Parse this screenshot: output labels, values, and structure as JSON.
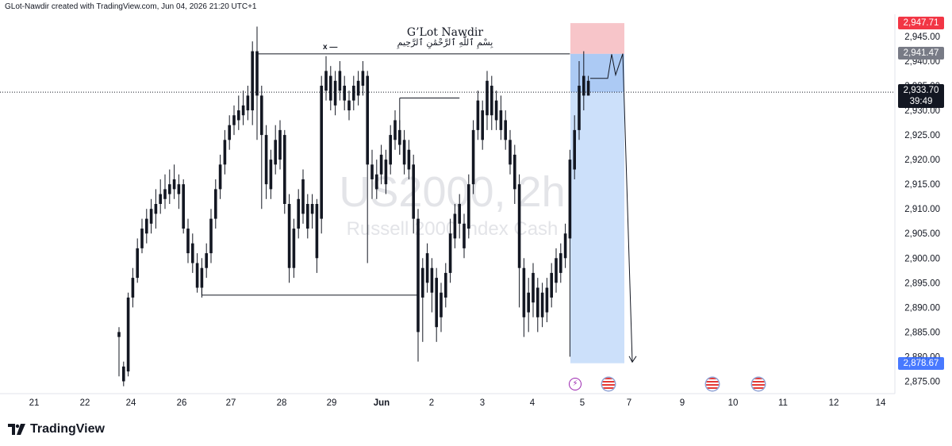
{
  "header": {
    "credit": "GLot-Nawdir created with TradingView.com, Jun 04, 2026 21:20 UTC+1"
  },
  "watermark": {
    "symbol": "US2000, 2h",
    "name": "Russell 2000 Index Cash"
  },
  "annotations": {
    "author": "G’Lot Nawdir",
    "basmala": "بِسْمِ ٱللَّٰهِ ٱلرَّحْمَٰنِ ٱلرَّحِيمِ",
    "marker": "x —"
  },
  "price_labels": {
    "stop": "2,947.71",
    "entry": "2,941.47",
    "current": "2,933.70",
    "countdown": "39:49",
    "target": "2,878.67"
  },
  "footer": {
    "brand": "TradingView"
  },
  "colors": {
    "up": "#2962ff",
    "down": "#131722",
    "stop_zone": "#f7c5c9",
    "target_zone": "#bbd5f8",
    "stop_label": "#f23645",
    "target_label": "#2962ff"
  },
  "icons": [
    "lightning-event-icon",
    "us-flag-icon",
    "us-flag-icon",
    "us-flag-icon"
  ],
  "chart_data": {
    "type": "candlestick",
    "symbol": "US2000",
    "timeframe": "2h",
    "y_ticks": [
      2945,
      2940,
      2935,
      2930,
      2925,
      2920,
      2915,
      2910,
      2905,
      2900,
      2895,
      2890,
      2885,
      2880,
      2875
    ],
    "y_tick_labels": [
      "2,945.00",
      "2,940.00",
      "2,935.00",
      "2,930.00",
      "2,925.00",
      "2,920.00",
      "2,915.00",
      "2,910.00",
      "2,905.00",
      "2,900.00",
      "2,895.00",
      "2,890.00",
      "2,885.00",
      "2,880.00",
      "2,875.00"
    ],
    "ylim": [
      2872.5,
      2949.5
    ],
    "x_tick_labels": [
      "21",
      "22",
      "24",
      "26",
      "27",
      "28",
      "29",
      "Jun",
      "2",
      "3",
      "4",
      "5",
      "7",
      "9",
      "10",
      "11",
      "12",
      "14"
    ],
    "candles": [
      [
        2885,
        2884,
        2886,
        2876
      ],
      [
        2878,
        2875,
        2879,
        2874
      ],
      [
        2892,
        2877,
        2893,
        2876
      ],
      [
        2896,
        2892,
        2898,
        2890
      ],
      [
        2902,
        2896,
        2904,
        2895
      ],
      [
        2906,
        2902,
        2908,
        2901
      ],
      [
        2908,
        2905,
        2910,
        2903
      ],
      [
        2910,
        2907,
        2912,
        2905
      ],
      [
        2911,
        2909,
        2914,
        2906
      ],
      [
        2913,
        2911,
        2916,
        2909
      ],
      [
        2914,
        2912,
        2917,
        2910
      ],
      [
        2915,
        2913,
        2918,
        2911
      ],
      [
        2916,
        2914,
        2919,
        2912
      ],
      [
        2915,
        2913,
        2917,
        2910
      ],
      [
        2915,
        2906,
        2916,
        2905
      ],
      [
        2906,
        2901,
        2908,
        2899
      ],
      [
        2903,
        2899,
        2905,
        2897
      ],
      [
        2899,
        2894,
        2901,
        2893
      ],
      [
        2898,
        2894,
        2900,
        2892
      ],
      [
        2901,
        2898,
        2903,
        2896
      ],
      [
        2908,
        2901,
        2910,
        2899
      ],
      [
        2914,
        2908,
        2916,
        2906
      ],
      [
        2919,
        2914,
        2921,
        2912
      ],
      [
        2924,
        2919,
        2926,
        2917
      ],
      [
        2927,
        2924,
        2929,
        2922
      ],
      [
        2929,
        2927,
        2931,
        2925
      ],
      [
        2930,
        2928,
        2933,
        2926
      ],
      [
        2931,
        2929,
        2934,
        2927
      ],
      [
        2933,
        2930,
        2935,
        2928
      ],
      [
        2942,
        2930,
        2944,
        2927
      ],
      [
        2942,
        2933,
        2947,
        2924
      ],
      [
        2933,
        2925,
        2935,
        2910
      ],
      [
        2925,
        2915,
        2927,
        2912
      ],
      [
        2920,
        2914,
        2922,
        2912
      ],
      [
        2924,
        2919,
        2927,
        2917
      ],
      [
        2926,
        2920,
        2928,
        2918
      ],
      [
        2925,
        2911,
        2926,
        2909
      ],
      [
        2911,
        2898,
        2913,
        2895
      ],
      [
        2906,
        2898,
        2908,
        2896
      ],
      [
        2912,
        2906,
        2914,
        2904
      ],
      [
        2916,
        2909,
        2918,
        2907
      ],
      [
        2911,
        2906,
        2913,
        2904
      ],
      [
        2911,
        2909,
        2913,
        2906
      ],
      [
        2911,
        2900,
        2912,
        2897
      ],
      [
        2935,
        2908,
        2937,
        2905
      ],
      [
        2938,
        2934,
        2941,
        2932
      ],
      [
        2937,
        2932,
        2939,
        2930
      ],
      [
        2936,
        2931,
        2938,
        2929
      ],
      [
        2938,
        2934,
        2940,
        2932
      ],
      [
        2935,
        2932,
        2937,
        2930
      ],
      [
        2932,
        2930,
        2934,
        2928
      ],
      [
        2935,
        2932,
        2937,
        2930
      ],
      [
        2936,
        2933,
        2938,
        2931
      ],
      [
        2938,
        2935,
        2940,
        2933
      ],
      [
        2937,
        2919,
        2938,
        2899
      ],
      [
        2919,
        2916,
        2922,
        2912
      ],
      [
        2917,
        2914,
        2920,
        2912
      ],
      [
        2921,
        2917,
        2923,
        2915
      ],
      [
        2920,
        2915,
        2922,
        2913
      ],
      [
        2925,
        2919,
        2927,
        2917
      ],
      [
        2928,
        2924,
        2930,
        2922
      ],
      [
        2926,
        2923,
        2928,
        2921
      ],
      [
        2924,
        2919,
        2926,
        2917
      ],
      [
        2922,
        2918,
        2924,
        2916
      ],
      [
        2919,
        2908,
        2921,
        2905
      ],
      [
        2908,
        2885,
        2910,
        2879
      ],
      [
        2898,
        2892,
        2900,
        2883
      ],
      [
        2901,
        2895,
        2903,
        2893
      ],
      [
        2898,
        2893,
        2900,
        2889
      ],
      [
        2896,
        2886,
        2898,
        2883
      ],
      [
        2893,
        2888,
        2895,
        2885
      ],
      [
        2897,
        2892,
        2899,
        2890
      ],
      [
        2905,
        2897,
        2908,
        2895
      ],
      [
        2909,
        2904,
        2911,
        2902
      ],
      [
        2911,
        2907,
        2913,
        2904
      ],
      [
        2907,
        2902,
        2909,
        2900
      ],
      [
        2915,
        2906,
        2917,
        2904
      ],
      [
        2926,
        2915,
        2928,
        2913
      ],
      [
        2932,
        2926,
        2934,
        2924
      ],
      [
        2930,
        2924,
        2932,
        2922
      ],
      [
        2936,
        2929,
        2938,
        2926
      ],
      [
        2935,
        2929,
        2937,
        2926
      ],
      [
        2932,
        2928,
        2934,
        2926
      ],
      [
        2930,
        2926,
        2933,
        2924
      ],
      [
        2928,
        2924,
        2930,
        2922
      ],
      [
        2924,
        2919,
        2926,
        2917
      ],
      [
        2921,
        2914,
        2923,
        2911
      ],
      [
        2915,
        2898,
        2917,
        2890
      ],
      [
        2898,
        2888,
        2900,
        2884
      ],
      [
        2893,
        2889,
        2896,
        2885
      ],
      [
        2897,
        2891,
        2899,
        2888
      ],
      [
        2894,
        2888,
        2896,
        2885
      ],
      [
        2893,
        2888,
        2895,
        2886
      ],
      [
        2894,
        2889,
        2896,
        2887
      ],
      [
        2897,
        2892,
        2899,
        2890
      ],
      [
        2900,
        2895,
        2902,
        2893
      ],
      [
        2901,
        2897,
        2903,
        2895
      ],
      [
        2905,
        2900,
        2907,
        2898
      ],
      [
        2920,
        2904,
        2922,
        2880
      ],
      [
        2926,
        2918,
        2929,
        2916
      ],
      [
        2935,
        2926,
        2940,
        2924
      ],
      [
        2937,
        2933,
        2942,
        2930
      ],
      [
        2936,
        2933,
        2937,
        2933
      ]
    ],
    "position": {
      "type": "short",
      "entry": 2941.47,
      "stop": 2947.71,
      "target": 2878.67,
      "current": 2933.7
    },
    "levels": [
      {
        "price": 2941.47,
        "from_index": 30,
        "to_index": 98
      },
      {
        "price": 2892.5,
        "from_index": 18,
        "to_index": 65
      },
      {
        "price": 2932.5,
        "from_index": 61,
        "to_index": 74
      }
    ]
  }
}
